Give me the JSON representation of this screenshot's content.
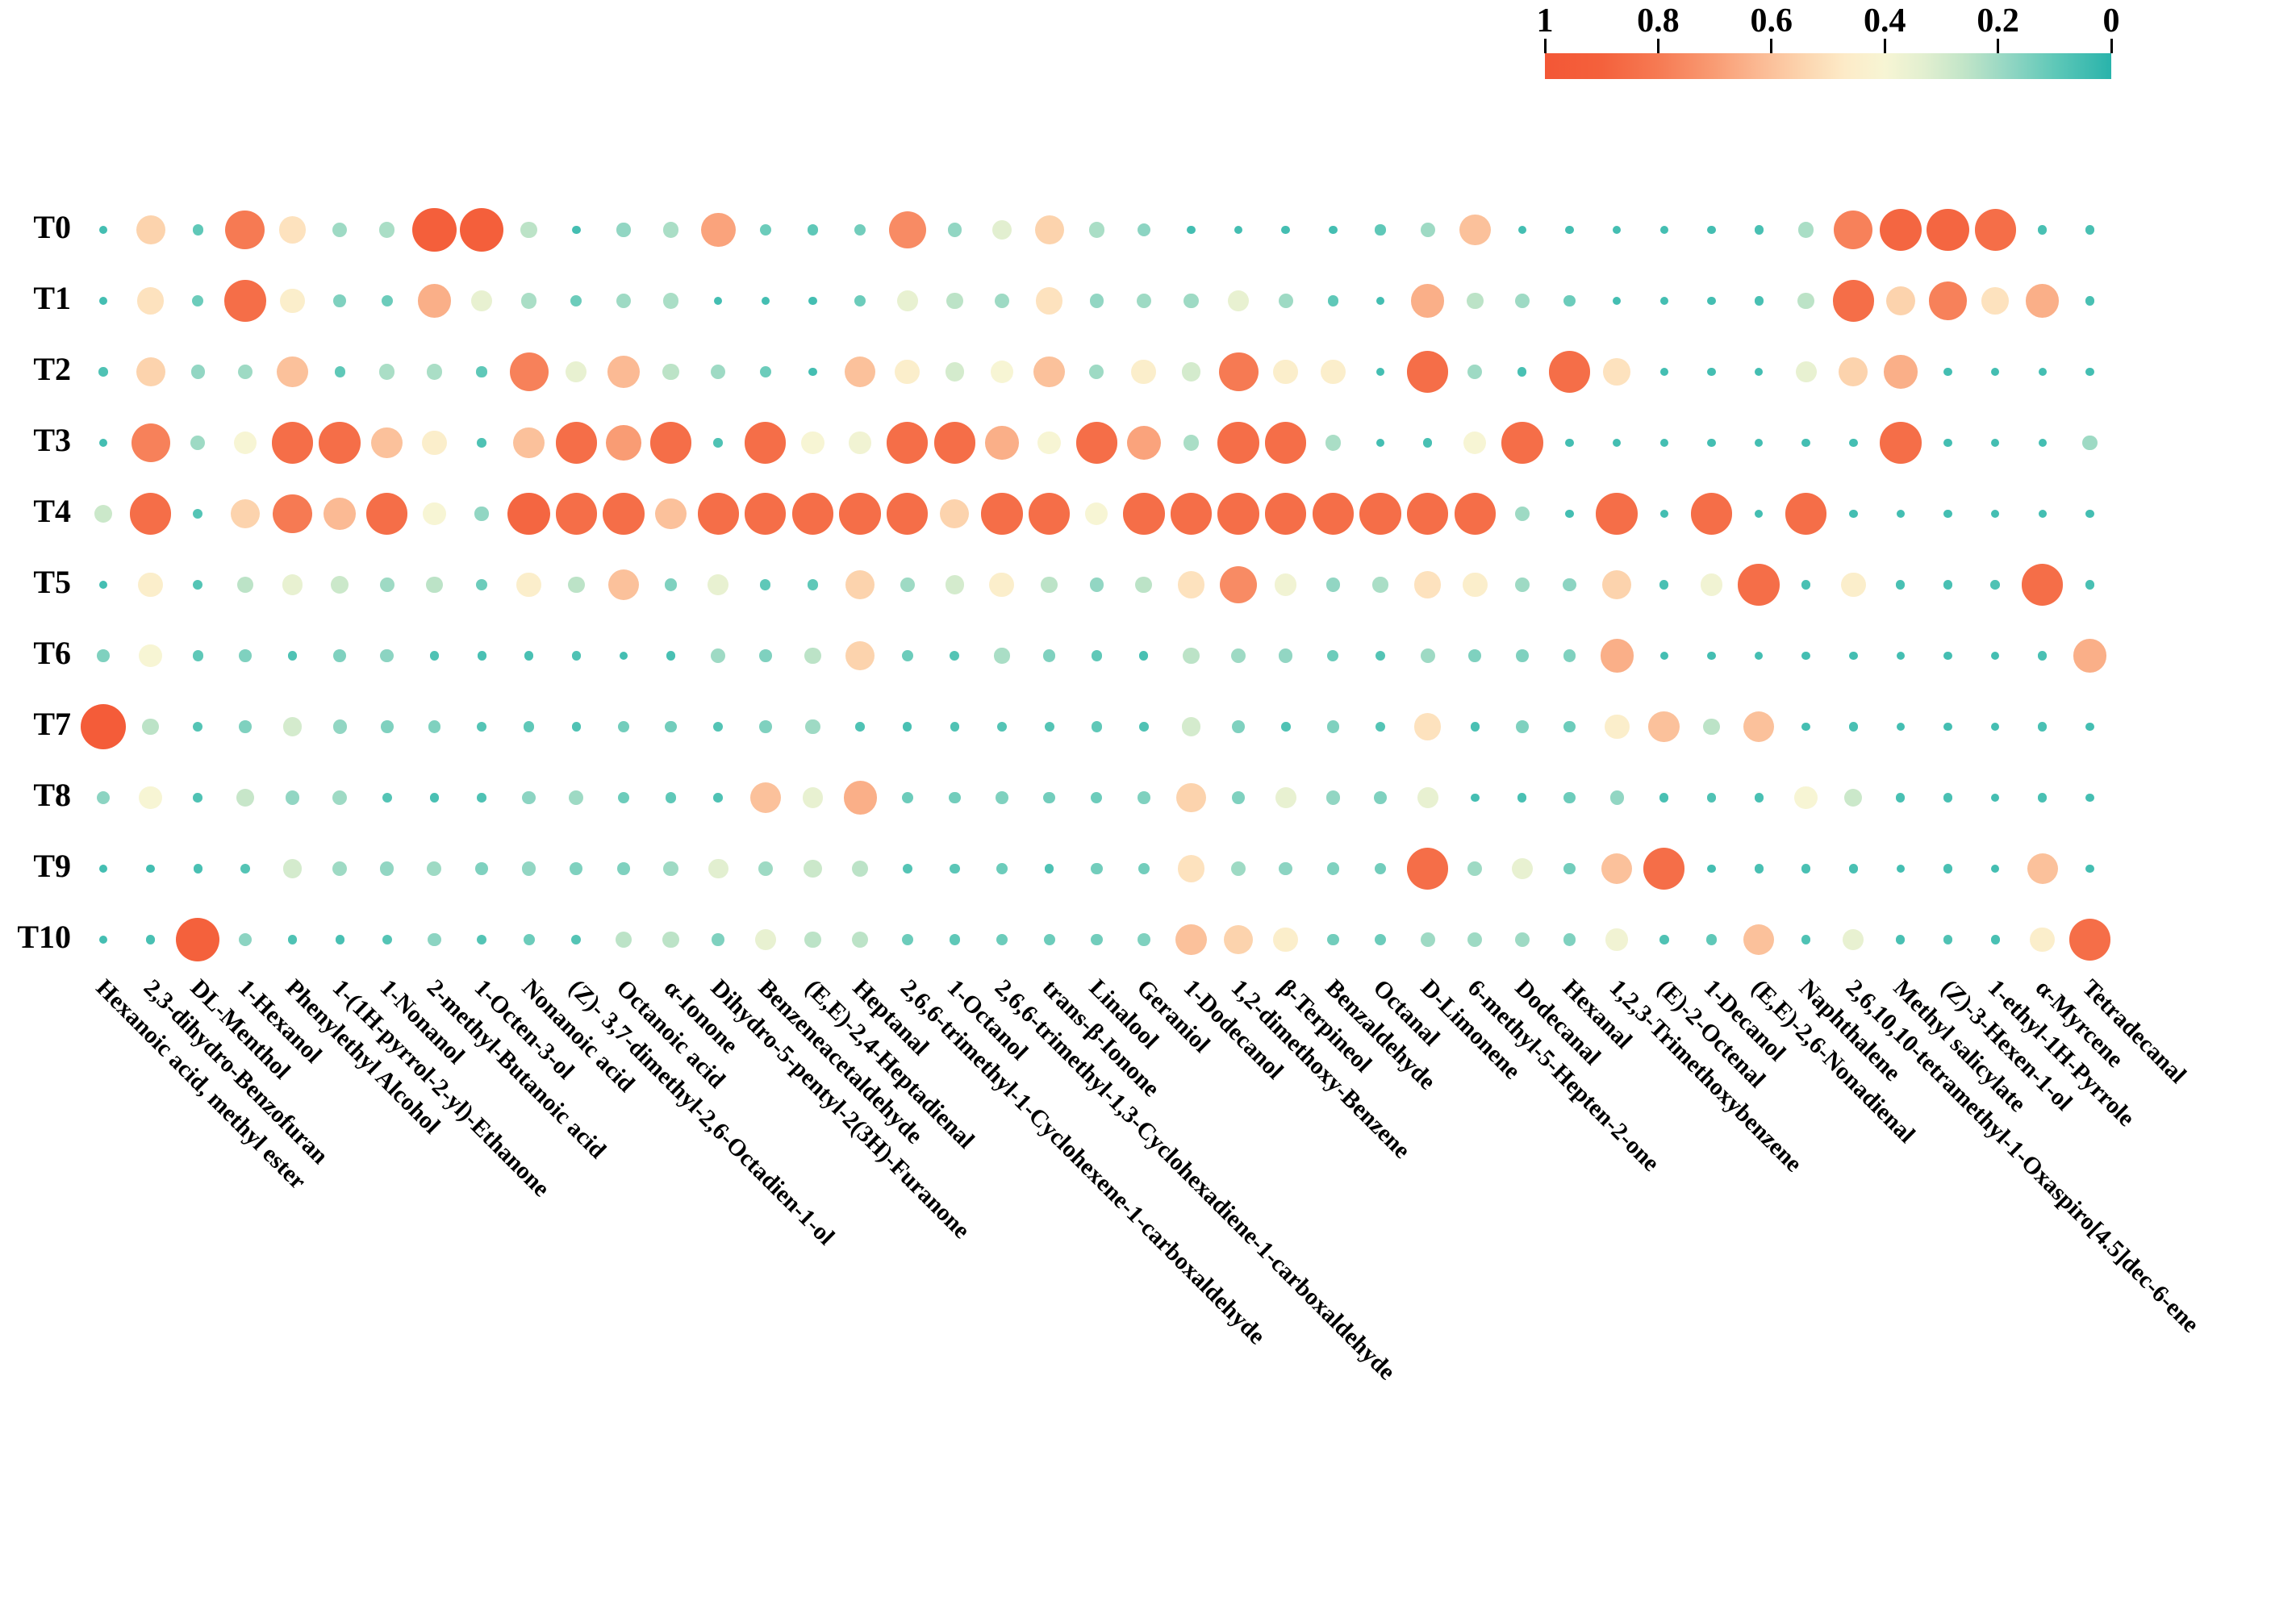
{
  "figure": {
    "background_color": "#ffffff",
    "description": "Bubble matrix of volatile compounds across time points T0-T10; bubble size and color encode relative value from 0 (small teal) to 1 (large red)."
  },
  "colorbar": {
    "tick_labels": [
      "1",
      "0.8",
      "0.6",
      "0.4",
      "0.2",
      "0"
    ],
    "tick_values": [
      1,
      0.8,
      0.6,
      0.4,
      0.2,
      0
    ],
    "orientation": "horizontal",
    "left_value": 1,
    "right_value": 0
  },
  "chart_data": {
    "type": "heatmap",
    "subtype": "bubble-matrix",
    "title": "",
    "xlabel": "",
    "ylabel": "",
    "value_range": [
      0,
      1
    ],
    "grid": false,
    "legend_position": "top-right colorbar",
    "encoding": "bubble size and color both encode value: 1 = large red-orange, 0 = tiny teal",
    "colormap_stops": [
      [
        0.0,
        "#29b3ab"
      ],
      [
        0.1,
        "#5fc8b8"
      ],
      [
        0.18,
        "#92d6c3"
      ],
      [
        0.26,
        "#c2e5c8"
      ],
      [
        0.33,
        "#e2efd0"
      ],
      [
        0.4,
        "#f7f5d4"
      ],
      [
        0.47,
        "#fdebc8"
      ],
      [
        0.54,
        "#fcd6b0"
      ],
      [
        0.62,
        "#fbba94"
      ],
      [
        0.7,
        "#f99c74"
      ],
      [
        0.8,
        "#f67a53"
      ],
      [
        0.9,
        "#f4613c"
      ],
      [
        1.0,
        "#f35736"
      ]
    ],
    "rows": [
      "T0",
      "T1",
      "T2",
      "T3",
      "T4",
      "T5",
      "T6",
      "T7",
      "T8",
      "T9",
      "T10"
    ],
    "columns": [
      "Hexanoic acid, methyl ester",
      "2,3-dihydro-Benzofuran",
      "DL-Menthol",
      "1-Hexanol",
      "Phenylethyl Alcohol",
      "1-(1H-pyrrol-2-yl)-Ethanone",
      "1-Nonanol",
      "2-methyl-Butanoic acid",
      "1-Octen-3-ol",
      "Nonanoic acid",
      "(Z)- 3,7-dimethyl-2,6-Octadien-1-ol",
      "Octanoic acid",
      "α-Ionone",
      "Dihydro-5-pentyl-2(3H)-Furanone",
      "Benzeneacetaldehyde",
      "(E,E)-2,4-Heptadienal",
      "Heptanal",
      "2,6,6-trimethyl-1-Cyclohexene-1-carboxaldehyde",
      "1-Octanol",
      "2,6,6-trimethyl-1,3-Cyclohexadiene-1-carboxaldehyde",
      "trans-β-Ionone",
      "Linalool",
      "Geraniol",
      "1-Dodecanol",
      "1,2-dimethoxy-Benzene",
      "β-Terpineol",
      "Benzaldehyde",
      "Octanal",
      "D-Limonene",
      "6-methyl-5-Hepten-2-one",
      "Dodecanal",
      "Hexanal",
      "1,2,3-Trimethoxybenzene",
      "(E)-2-Octenal",
      "1-Decanol",
      "(E,E)-2,6-Nonadienal",
      "Naphthalene",
      "2,6,10,10-tetramethyl-1-Oxaspiro[4.5]dec-6-ene",
      "Methyl salicylate",
      "(Z)-3-Hexen-1-ol",
      "1-ethyl-1H-Pyrrole",
      "α-Myrcene",
      "Tetradecanal"
    ],
    "values": [
      [
        0.05,
        0.55,
        0.1,
        0.8,
        0.5,
        0.2,
        0.22,
        0.92,
        0.92,
        0.25,
        0.05,
        0.18,
        0.22,
        0.68,
        0.12,
        0.1,
        0.13,
        0.75,
        0.18,
        0.33,
        0.55,
        0.22,
        0.17,
        0.05,
        0.05,
        0.05,
        0.05,
        0.1,
        0.2,
        0.6,
        0.05,
        0.05,
        0.05,
        0.05,
        0.05,
        0.06,
        0.22,
        0.78,
        0.88,
        0.88,
        0.85,
        0.06,
        0.06
      ],
      [
        0.05,
        0.5,
        0.12,
        0.85,
        0.45,
        0.15,
        0.12,
        0.65,
        0.35,
        0.22,
        0.12,
        0.2,
        0.22,
        0.05,
        0.05,
        0.05,
        0.12,
        0.35,
        0.25,
        0.2,
        0.5,
        0.18,
        0.2,
        0.2,
        0.35,
        0.2,
        0.1,
        0.05,
        0.65,
        0.25,
        0.2,
        0.12,
        0.05,
        0.05,
        0.05,
        0.06,
        0.25,
        0.85,
        0.55,
        0.78,
        0.5,
        0.65,
        0.06
      ],
      [
        0.07,
        0.55,
        0.18,
        0.2,
        0.6,
        0.1,
        0.22,
        0.22,
        0.1,
        0.78,
        0.35,
        0.62,
        0.25,
        0.2,
        0.12,
        0.05,
        0.6,
        0.45,
        0.3,
        0.4,
        0.6,
        0.2,
        0.45,
        0.3,
        0.8,
        0.45,
        0.45,
        0.05,
        0.85,
        0.2,
        0.06,
        0.85,
        0.5,
        0.05,
        0.05,
        0.05,
        0.35,
        0.55,
        0.65,
        0.05,
        0.05,
        0.05,
        0.05
      ],
      [
        0.05,
        0.78,
        0.2,
        0.4,
        0.85,
        0.85,
        0.6,
        0.45,
        0.07,
        0.6,
        0.85,
        0.7,
        0.85,
        0.07,
        0.85,
        0.4,
        0.38,
        0.85,
        0.85,
        0.65,
        0.4,
        0.85,
        0.68,
        0.22,
        0.85,
        0.85,
        0.22,
        0.05,
        0.06,
        0.4,
        0.85,
        0.05,
        0.05,
        0.05,
        0.05,
        0.05,
        0.05,
        0.05,
        0.85,
        0.05,
        0.05,
        0.05,
        0.2
      ],
      [
        0.28,
        0.85,
        0.08,
        0.55,
        0.8,
        0.62,
        0.85,
        0.4,
        0.18,
        0.88,
        0.85,
        0.85,
        0.6,
        0.85,
        0.85,
        0.85,
        0.85,
        0.85,
        0.55,
        0.85,
        0.85,
        0.4,
        0.85,
        0.85,
        0.85,
        0.85,
        0.85,
        0.85,
        0.85,
        0.85,
        0.2,
        0.05,
        0.85,
        0.05,
        0.85,
        0.05,
        0.85,
        0.05,
        0.05,
        0.05,
        0.05,
        0.05,
        0.05
      ],
      [
        0.05,
        0.45,
        0.08,
        0.25,
        0.35,
        0.28,
        0.2,
        0.25,
        0.12,
        0.45,
        0.25,
        0.6,
        0.15,
        0.35,
        0.1,
        0.1,
        0.55,
        0.2,
        0.3,
        0.45,
        0.25,
        0.18,
        0.25,
        0.5,
        0.75,
        0.38,
        0.18,
        0.22,
        0.5,
        0.45,
        0.2,
        0.17,
        0.55,
        0.06,
        0.38,
        0.85,
        0.06,
        0.45,
        0.06,
        0.06,
        0.07,
        0.85,
        0.06
      ],
      [
        0.15,
        0.4,
        0.1,
        0.15,
        0.07,
        0.15,
        0.17,
        0.07,
        0.06,
        0.06,
        0.07,
        0.05,
        0.06,
        0.2,
        0.15,
        0.25,
        0.55,
        0.12,
        0.08,
        0.22,
        0.15,
        0.1,
        0.06,
        0.25,
        0.2,
        0.18,
        0.12,
        0.08,
        0.2,
        0.15,
        0.15,
        0.15,
        0.65,
        0.05,
        0.05,
        0.05,
        0.05,
        0.05,
        0.05,
        0.05,
        0.05,
        0.06,
        0.65
      ],
      [
        0.95,
        0.25,
        0.08,
        0.15,
        0.3,
        0.18,
        0.15,
        0.15,
        0.08,
        0.1,
        0.07,
        0.13,
        0.13,
        0.08,
        0.15,
        0.2,
        0.07,
        0.06,
        0.07,
        0.08,
        0.08,
        0.1,
        0.07,
        0.3,
        0.15,
        0.07,
        0.15,
        0.08,
        0.5,
        0.06,
        0.15,
        0.12,
        0.45,
        0.6,
        0.25,
        0.6,
        0.05,
        0.06,
        0.05,
        0.05,
        0.05,
        0.06,
        0.05
      ],
      [
        0.17,
        0.4,
        0.07,
        0.27,
        0.18,
        0.2,
        0.08,
        0.06,
        0.07,
        0.17,
        0.2,
        0.12,
        0.1,
        0.07,
        0.6,
        0.35,
        0.65,
        0.12,
        0.13,
        0.15,
        0.13,
        0.12,
        0.15,
        0.55,
        0.15,
        0.35,
        0.18,
        0.15,
        0.35,
        0.05,
        0.06,
        0.12,
        0.18,
        0.06,
        0.07,
        0.06,
        0.4,
        0.28,
        0.06,
        0.06,
        0.05,
        0.06,
        0.05
      ],
      [
        0.05,
        0.05,
        0.06,
        0.08,
        0.3,
        0.2,
        0.18,
        0.2,
        0.15,
        0.18,
        0.15,
        0.15,
        0.2,
        0.33,
        0.2,
        0.28,
        0.25,
        0.08,
        0.09,
        0.12,
        0.07,
        0.13,
        0.13,
        0.5,
        0.2,
        0.17,
        0.15,
        0.13,
        0.85,
        0.2,
        0.35,
        0.13,
        0.6,
        0.85,
        0.05,
        0.06,
        0.06,
        0.06,
        0.05,
        0.06,
        0.05,
        0.6,
        0.05
      ],
      [
        0.05,
        0.06,
        0.9,
        0.17,
        0.07,
        0.06,
        0.08,
        0.17,
        0.08,
        0.12,
        0.08,
        0.25,
        0.25,
        0.15,
        0.35,
        0.25,
        0.25,
        0.12,
        0.1,
        0.12,
        0.12,
        0.13,
        0.15,
        0.6,
        0.55,
        0.45,
        0.13,
        0.12,
        0.2,
        0.2,
        0.2,
        0.15,
        0.38,
        0.07,
        0.1,
        0.6,
        0.07,
        0.35,
        0.06,
        0.07,
        0.06,
        0.45,
        0.85
      ]
    ]
  }
}
